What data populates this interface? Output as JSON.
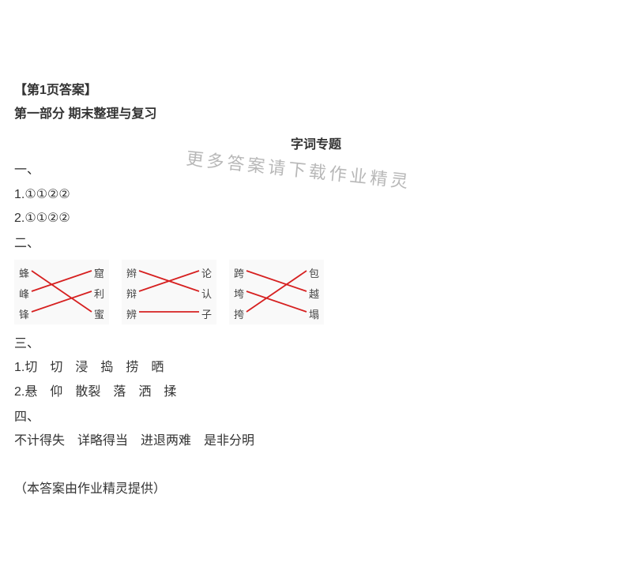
{
  "header": {
    "page_title": "【第1页答案】",
    "part_title": "第一部分 期末整理与复习",
    "topic_title": "字词专题"
  },
  "watermark": "更多答案请下载作业精灵",
  "section1": {
    "label": "一、",
    "line1": "1.①①②②",
    "line2": "2.①①②②"
  },
  "section2": {
    "label": "二、",
    "line_color": "#d62020",
    "box1": {
      "left": [
        "蜂",
        "峰",
        "锋"
      ],
      "right": [
        "窟",
        "利",
        "蜜"
      ],
      "lines": [
        [
          0,
          2
        ],
        [
          1,
          0
        ],
        [
          2,
          1
        ]
      ]
    },
    "box2": {
      "left": [
        "辫",
        "辩",
        "辨"
      ],
      "right": [
        "论",
        "认",
        "子"
      ],
      "lines": [
        [
          0,
          1
        ],
        [
          1,
          0
        ],
        [
          2,
          2
        ]
      ]
    },
    "box3": {
      "left": [
        "跨",
        "垮",
        "挎"
      ],
      "right": [
        "包",
        "越",
        "塌"
      ],
      "lines": [
        [
          0,
          1
        ],
        [
          1,
          2
        ],
        [
          2,
          0
        ]
      ]
    }
  },
  "section3": {
    "label": "三、",
    "line1": "1.切　切　浸　捣　捞　晒",
    "line2": "2.悬　仰　散裂　落　洒　揉"
  },
  "section4": {
    "label": "四、",
    "content": "不计得失　详略得当　进退两难　是非分明"
  },
  "footer": "（本答案由作业精灵提供）"
}
